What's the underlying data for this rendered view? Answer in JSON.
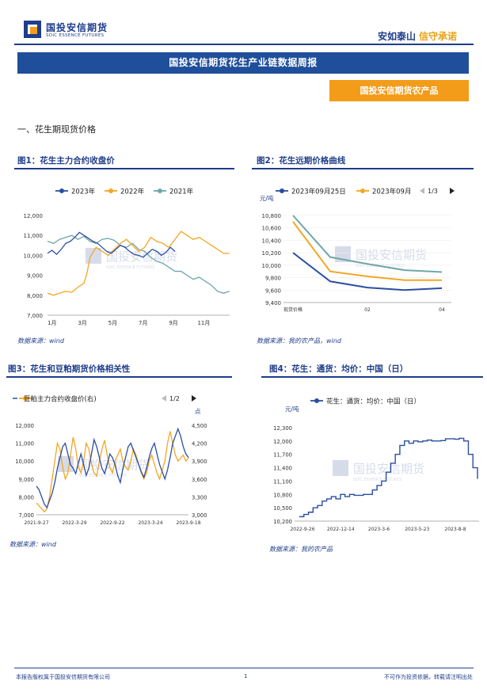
{
  "header": {
    "logo_cn": "国投安信期货",
    "logo_en": "SDIC ESSENCE FUTURES",
    "slogan_a": "安如泰山",
    "slogan_b": "信守承诺",
    "banner": "国投安信期货花生产业链数据周报",
    "sub_banner": "国投安信期货农产品"
  },
  "section_title": "一、花生期现货价格",
  "watermark": "国投安信期货",
  "watermark_en": "SDIC ESSENCE FUTURES",
  "colors": {
    "navy": "#1f3d8a",
    "blue": "#2b4ea2",
    "orange": "#f5a623",
    "teal": "#6fa7a8",
    "banner": "#1f4e9a",
    "sub_banner": "#f39c1a"
  },
  "figures": [
    {
      "title": "图1：花生主力合约收盘价",
      "source": "数据来源：wind"
    },
    {
      "title": "图2：花生远期价格曲线",
      "source": "数据来源：我的农产品，wind"
    },
    {
      "title": "图3：花生和豆粕期货价格相关性",
      "source": "数据来源：wind"
    },
    {
      "title": "图4：花生：通货：均价：中国（日）",
      "source": "数据来源：我的农产品"
    }
  ],
  "chart_data": [
    {
      "type": "line",
      "legend": [
        "2023年",
        "2022年",
        "2021年"
      ],
      "x_ticks": [
        "1月",
        "3月",
        "5月",
        "7月",
        "9月",
        "11月"
      ],
      "y_ticks": [
        "12,000",
        "11,000",
        "10,000",
        "9,000",
        "8,000",
        "7,000"
      ],
      "ylim": [
        7000,
        12000
      ],
      "series": [
        {
          "name": "2023年",
          "color": "#2b4ea2",
          "x": [
            0,
            0.3,
            0.6,
            0.9,
            1.2,
            1.5,
            1.8,
            2.1,
            2.4,
            2.7,
            3.0,
            3.3,
            3.6,
            3.9,
            4.2,
            4.5,
            4.8,
            5.1,
            5.4,
            5.7,
            6.0,
            6.3,
            6.6,
            6.9,
            7.2,
            7.5,
            7.8,
            8.1,
            8.4
          ],
          "values": [
            10100,
            10250,
            10050,
            10300,
            10600,
            10700,
            10900,
            11150,
            11000,
            10850,
            10700,
            10600,
            10400,
            10200,
            10100,
            10300,
            10500,
            10400,
            10200,
            10050,
            10000,
            9900,
            10100,
            10300,
            10200,
            10000,
            10150,
            10400,
            10200
          ]
        },
        {
          "name": "2022年",
          "color": "#f5a623",
          "x": [
            0,
            0.4,
            0.8,
            1.2,
            1.6,
            2.0,
            2.4,
            2.6,
            2.8,
            3.2,
            3.6,
            4.0,
            4.4,
            4.8,
            5.2,
            5.6,
            6.0,
            6.4,
            6.8,
            7.2,
            7.6,
            8.0,
            8.4,
            8.8,
            9.2,
            9.6,
            10.0,
            10.4,
            10.8,
            11.2,
            11.6,
            12.0
          ],
          "values": [
            8100,
            8000,
            8100,
            8200,
            8150,
            8400,
            8600,
            9100,
            9900,
            10400,
            10200,
            10000,
            10300,
            10600,
            10800,
            10500,
            10200,
            10400,
            10900,
            10700,
            10600,
            10400,
            10800,
            11200,
            11000,
            10800,
            10900,
            10700,
            10500,
            10300,
            10100,
            10100
          ]
        },
        {
          "name": "2021年",
          "color": "#6fa7a8",
          "x": [
            0,
            0.4,
            0.8,
            1.2,
            1.6,
            2.0,
            2.4,
            2.8,
            3.2,
            3.6,
            4.0,
            4.4,
            4.8,
            5.2,
            5.6,
            6.0,
            6.4,
            6.8,
            7.2,
            7.6,
            8.0,
            8.4,
            8.8,
            9.2,
            9.6,
            10.0,
            10.4,
            10.8,
            11.2,
            11.6,
            12.0
          ],
          "values": [
            10700,
            10600,
            10800,
            10900,
            11000,
            10800,
            10950,
            10700,
            10600,
            10800,
            10850,
            10750,
            10500,
            10400,
            10600,
            10300,
            10200,
            9900,
            9700,
            9600,
            9400,
            9200,
            9200,
            9000,
            8800,
            8900,
            8700,
            8500,
            8200,
            8100,
            8200
          ]
        }
      ]
    },
    {
      "type": "line",
      "legend": [
        "2023年09月25日",
        "2023年09月"
      ],
      "pager": "1/3",
      "y_unit": "元/吨",
      "y_ticks": [
        "10,800",
        "10,600",
        "10,400",
        "10,200",
        "10,000",
        "9,800",
        "9,600",
        "9,400"
      ],
      "ylim": [
        9400,
        10800
      ],
      "x_ticks": [
        "现货价格",
        "02",
        "04"
      ],
      "series": [
        {
          "name": "2023年09月25日",
          "color": "#2b4ea2",
          "x": [
            0,
            1,
            2,
            3,
            4
          ],
          "values": [
            10200,
            9740,
            9640,
            9600,
            9630
          ]
        },
        {
          "name": "2023年09月",
          "color": "#f5a623",
          "x": [
            0,
            1,
            2,
            3,
            4
          ],
          "values": [
            10700,
            9900,
            9820,
            9760,
            9760
          ]
        },
        {
          "name": "",
          "color": "#6fa7a8",
          "x": [
            0,
            1,
            2,
            3,
            4
          ],
          "values": [
            10800,
            10130,
            10020,
            9920,
            9890
          ]
        }
      ]
    },
    {
      "type": "line",
      "legend": [
        "豆粕主力合约收盘价(右)"
      ],
      "pager": "1/2",
      "y_unit_right": "点",
      "y_ticks": [
        "12,000",
        "11,000",
        "10,000",
        "9,000",
        "8,000",
        "7,000"
      ],
      "y_ticks_right": [
        "4,500",
        "4,200",
        "3,900",
        "3,600",
        "3,300",
        "3,000"
      ],
      "x_ticks": [
        "2021-9-27",
        "2022-3-29",
        "2022-9-22",
        "2023-3-24",
        "2023-9-18"
      ],
      "ylim": [
        7000,
        12000
      ],
      "ylim_right": [
        3000,
        4500
      ],
      "series": [
        {
          "name": "",
          "color": "#2b4ea2",
          "values": [
            8600,
            8400,
            8000,
            7600,
            7400,
            7800,
            8200,
            8800,
            9600,
            10200,
            10800,
            11000,
            10400,
            9800,
            9600,
            9300,
            9900,
            10400,
            9800,
            9200,
            9600,
            10400,
            11200,
            10800,
            10200,
            9600,
            9300,
            9800,
            10400,
            10200,
            9800,
            9200,
            8800,
            9600,
            10200,
            10800,
            11000,
            10600,
            10200,
            9800,
            9400,
            9100,
            9600,
            10200,
            10700,
            11000,
            10400,
            9800,
            9400,
            9000,
            9500,
            10200,
            11000,
            11400,
            11800,
            11400,
            10800,
            10400,
            10200
          ]
        },
        {
          "name": "豆粕主力合约收盘价(右)",
          "color": "#f5a623",
          "values": [
            3200,
            3150,
            3100,
            3050,
            3100,
            3300,
            3600,
            3900,
            4200,
            4100,
            3800,
            3600,
            3700,
            4000,
            4300,
            4100,
            3800,
            3700,
            3900,
            4200,
            4100,
            3850,
            3700,
            3650,
            3900,
            4100,
            4250,
            4000,
            3800,
            3700,
            3900,
            4000,
            4100,
            3900,
            3800,
            3750,
            3900,
            4100,
            4000,
            3850,
            3700,
            3600,
            3700,
            3900,
            4000,
            3850,
            3700,
            3600,
            3750,
            3900,
            4200,
            4400,
            4200,
            4000,
            3900,
            3950,
            4000,
            3900,
            3950
          ]
        }
      ]
    },
    {
      "type": "line",
      "legend": [
        "花生：通货：均价：中国（日）"
      ],
      "y_unit": "元/吨",
      "y_ticks": [
        "12,300",
        "12,000",
        "11,700",
        "11,400",
        "11,100",
        "10,800",
        "10,500",
        "10,200"
      ],
      "ylim": [
        10200,
        12300
      ],
      "x_ticks": [
        "2022-9-26",
        "2022-12-14",
        "2023-3-6",
        "2023-5-23",
        "2023-8-8"
      ],
      "series": [
        {
          "name": "花生：通货：均价：中国（日）",
          "color": "#2b4ea2",
          "values": [
            10300,
            10350,
            10400,
            10500,
            10550,
            10650,
            10700,
            10750,
            10700,
            10800,
            10750,
            10800,
            10780,
            10780,
            10800,
            10800,
            10900,
            11000,
            11100,
            11300,
            11500,
            11700,
            11900,
            12000,
            11950,
            12000,
            11980,
            12000,
            12020,
            12000,
            12000,
            12010,
            12050,
            12050,
            12040,
            12060,
            12000,
            11700,
            11400,
            11150
          ]
        }
      ]
    }
  ],
  "footer": {
    "left": "本报告版权属于国投安信期货有限公司",
    "page": "1",
    "right": "不可作为投资依据，转载请注明出处"
  }
}
